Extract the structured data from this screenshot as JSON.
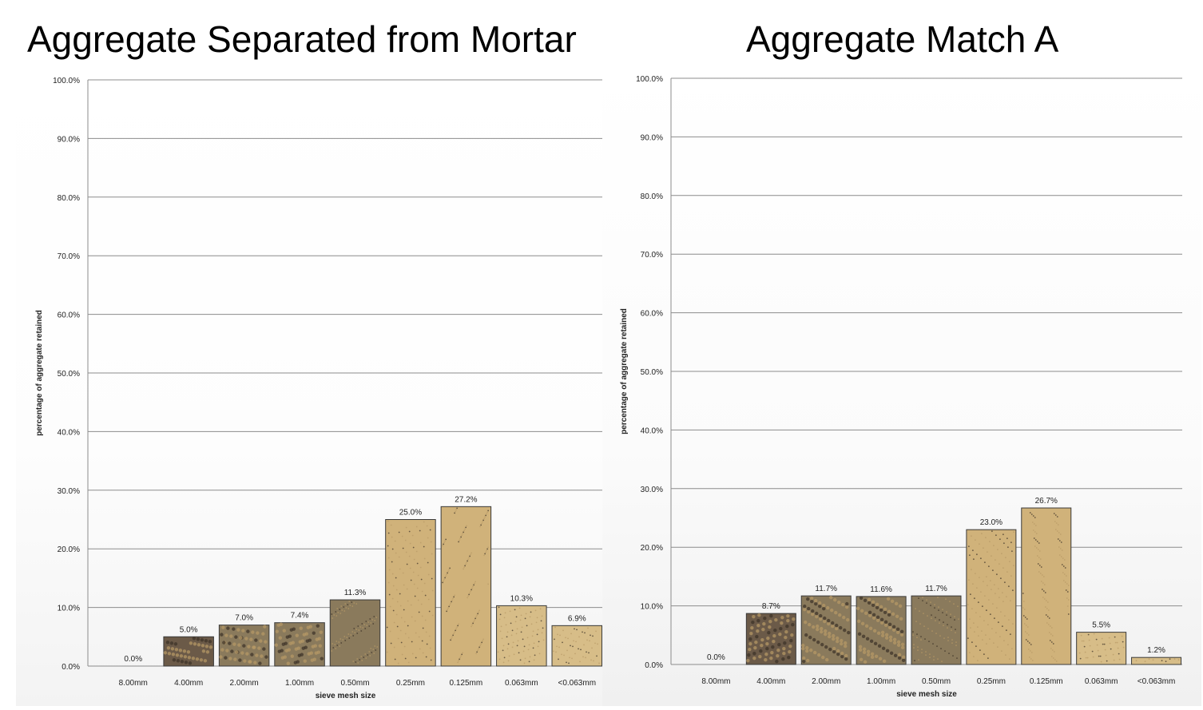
{
  "titles": {
    "left": "Aggregate Separated from Mortar",
    "right": "Aggregate Match A"
  },
  "colors": {
    "grid": "#8c8c8c",
    "bar_fine": "#d7bd88",
    "bar_sand": "#d0b27a",
    "bar_gravel": "#8a7a5c",
    "bar_stone": "#6b5a48",
    "bar_edge": "#3a3a3a"
  },
  "chart_data": [
    {
      "type": "bar",
      "title": "Aggregate Separated from Mortar",
      "xlabel": "sieve mesh size",
      "ylabel": "percentage of aggregate retained",
      "ylim": [
        0,
        100
      ],
      "yticks": [
        "0.0%",
        "10.0%",
        "20.0%",
        "30.0%",
        "40.0%",
        "50.0%",
        "60.0%",
        "70.0%",
        "80.0%",
        "90.0%",
        "100.0%"
      ],
      "grid": true,
      "categories": [
        "8.00mm",
        "4.00mm",
        "2.00mm",
        "1.00mm",
        "0.50mm",
        "0.25mm",
        "0.125mm",
        "0.063mm",
        "<0.063mm"
      ],
      "values": [
        0.0,
        5.0,
        7.0,
        7.4,
        11.3,
        25.0,
        27.2,
        10.3,
        6.9
      ],
      "data_labels": [
        "0.0%",
        "5.0%",
        "7.0%",
        "7.4%",
        "11.3%",
        "25.0%",
        "27.2%",
        "10.3%",
        "6.9%"
      ]
    },
    {
      "type": "bar",
      "title": "Aggregate Match A",
      "xlabel": "sieve mesh size",
      "ylabel": "percentage of aggregate retained",
      "ylim": [
        0,
        100
      ],
      "yticks": [
        "0.0%",
        "10.0%",
        "20.0%",
        "30.0%",
        "40.0%",
        "50.0%",
        "60.0%",
        "70.0%",
        "80.0%",
        "90.0%",
        "100.0%"
      ],
      "grid": true,
      "categories": [
        "8.00mm",
        "4.00mm",
        "2.00mm",
        "1.00mm",
        "0.50mm",
        "0.25mm",
        "0.125mm",
        "0.063mm",
        "<0.063mm"
      ],
      "values": [
        0.0,
        8.7,
        11.7,
        11.6,
        11.7,
        23.0,
        26.7,
        5.5,
        1.2
      ],
      "data_labels": [
        "0.0%",
        "8.7%",
        "11.7%",
        "11.6%",
        "11.7%",
        "23.0%",
        "26.7%",
        "5.5%",
        "1.2%"
      ]
    }
  ]
}
